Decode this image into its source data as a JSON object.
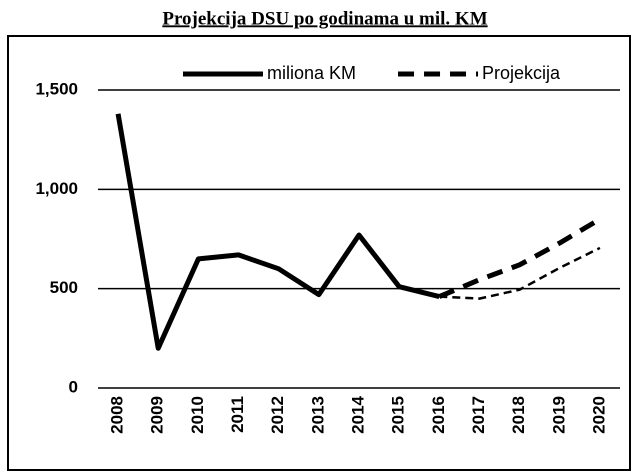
{
  "chart_data": {
    "type": "line",
    "title": "Projekcija DSU po godinama u mil. KM",
    "categories": [
      "2008",
      "2009",
      "2010",
      "2011",
      "2012",
      "2013",
      "2014",
      "2015",
      "2016",
      "2017",
      "2018",
      "2019",
      "2020"
    ],
    "series": [
      {
        "name": "miliona KM",
        "color": "#000000",
        "line_style": "solid",
        "values": [
          1380,
          200,
          650,
          670,
          600,
          470,
          770,
          510,
          460,
          null,
          null,
          null,
          null
        ]
      },
      {
        "name": "Projekcija",
        "color": "#000000",
        "line_style": "dashed",
        "values": [
          null,
          null,
          null,
          null,
          null,
          null,
          null,
          null,
          460,
          545,
          620,
          730,
          850
        ]
      },
      {
        "color": "#000000",
        "line_style": "dashed",
        "values": [
          null,
          null,
          null,
          null,
          null,
          null,
          null,
          null,
          460,
          450,
          495,
          605,
          705
        ]
      }
    ],
    "ylim": [
      0,
      1500
    ],
    "yticks": [
      0,
      500,
      {
        "value": 1000,
        "label": "1,000"
      },
      {
        "value": 1500,
        "label": "1,500"
      }
    ],
    "grid": true,
    "legend": "top-right"
  }
}
